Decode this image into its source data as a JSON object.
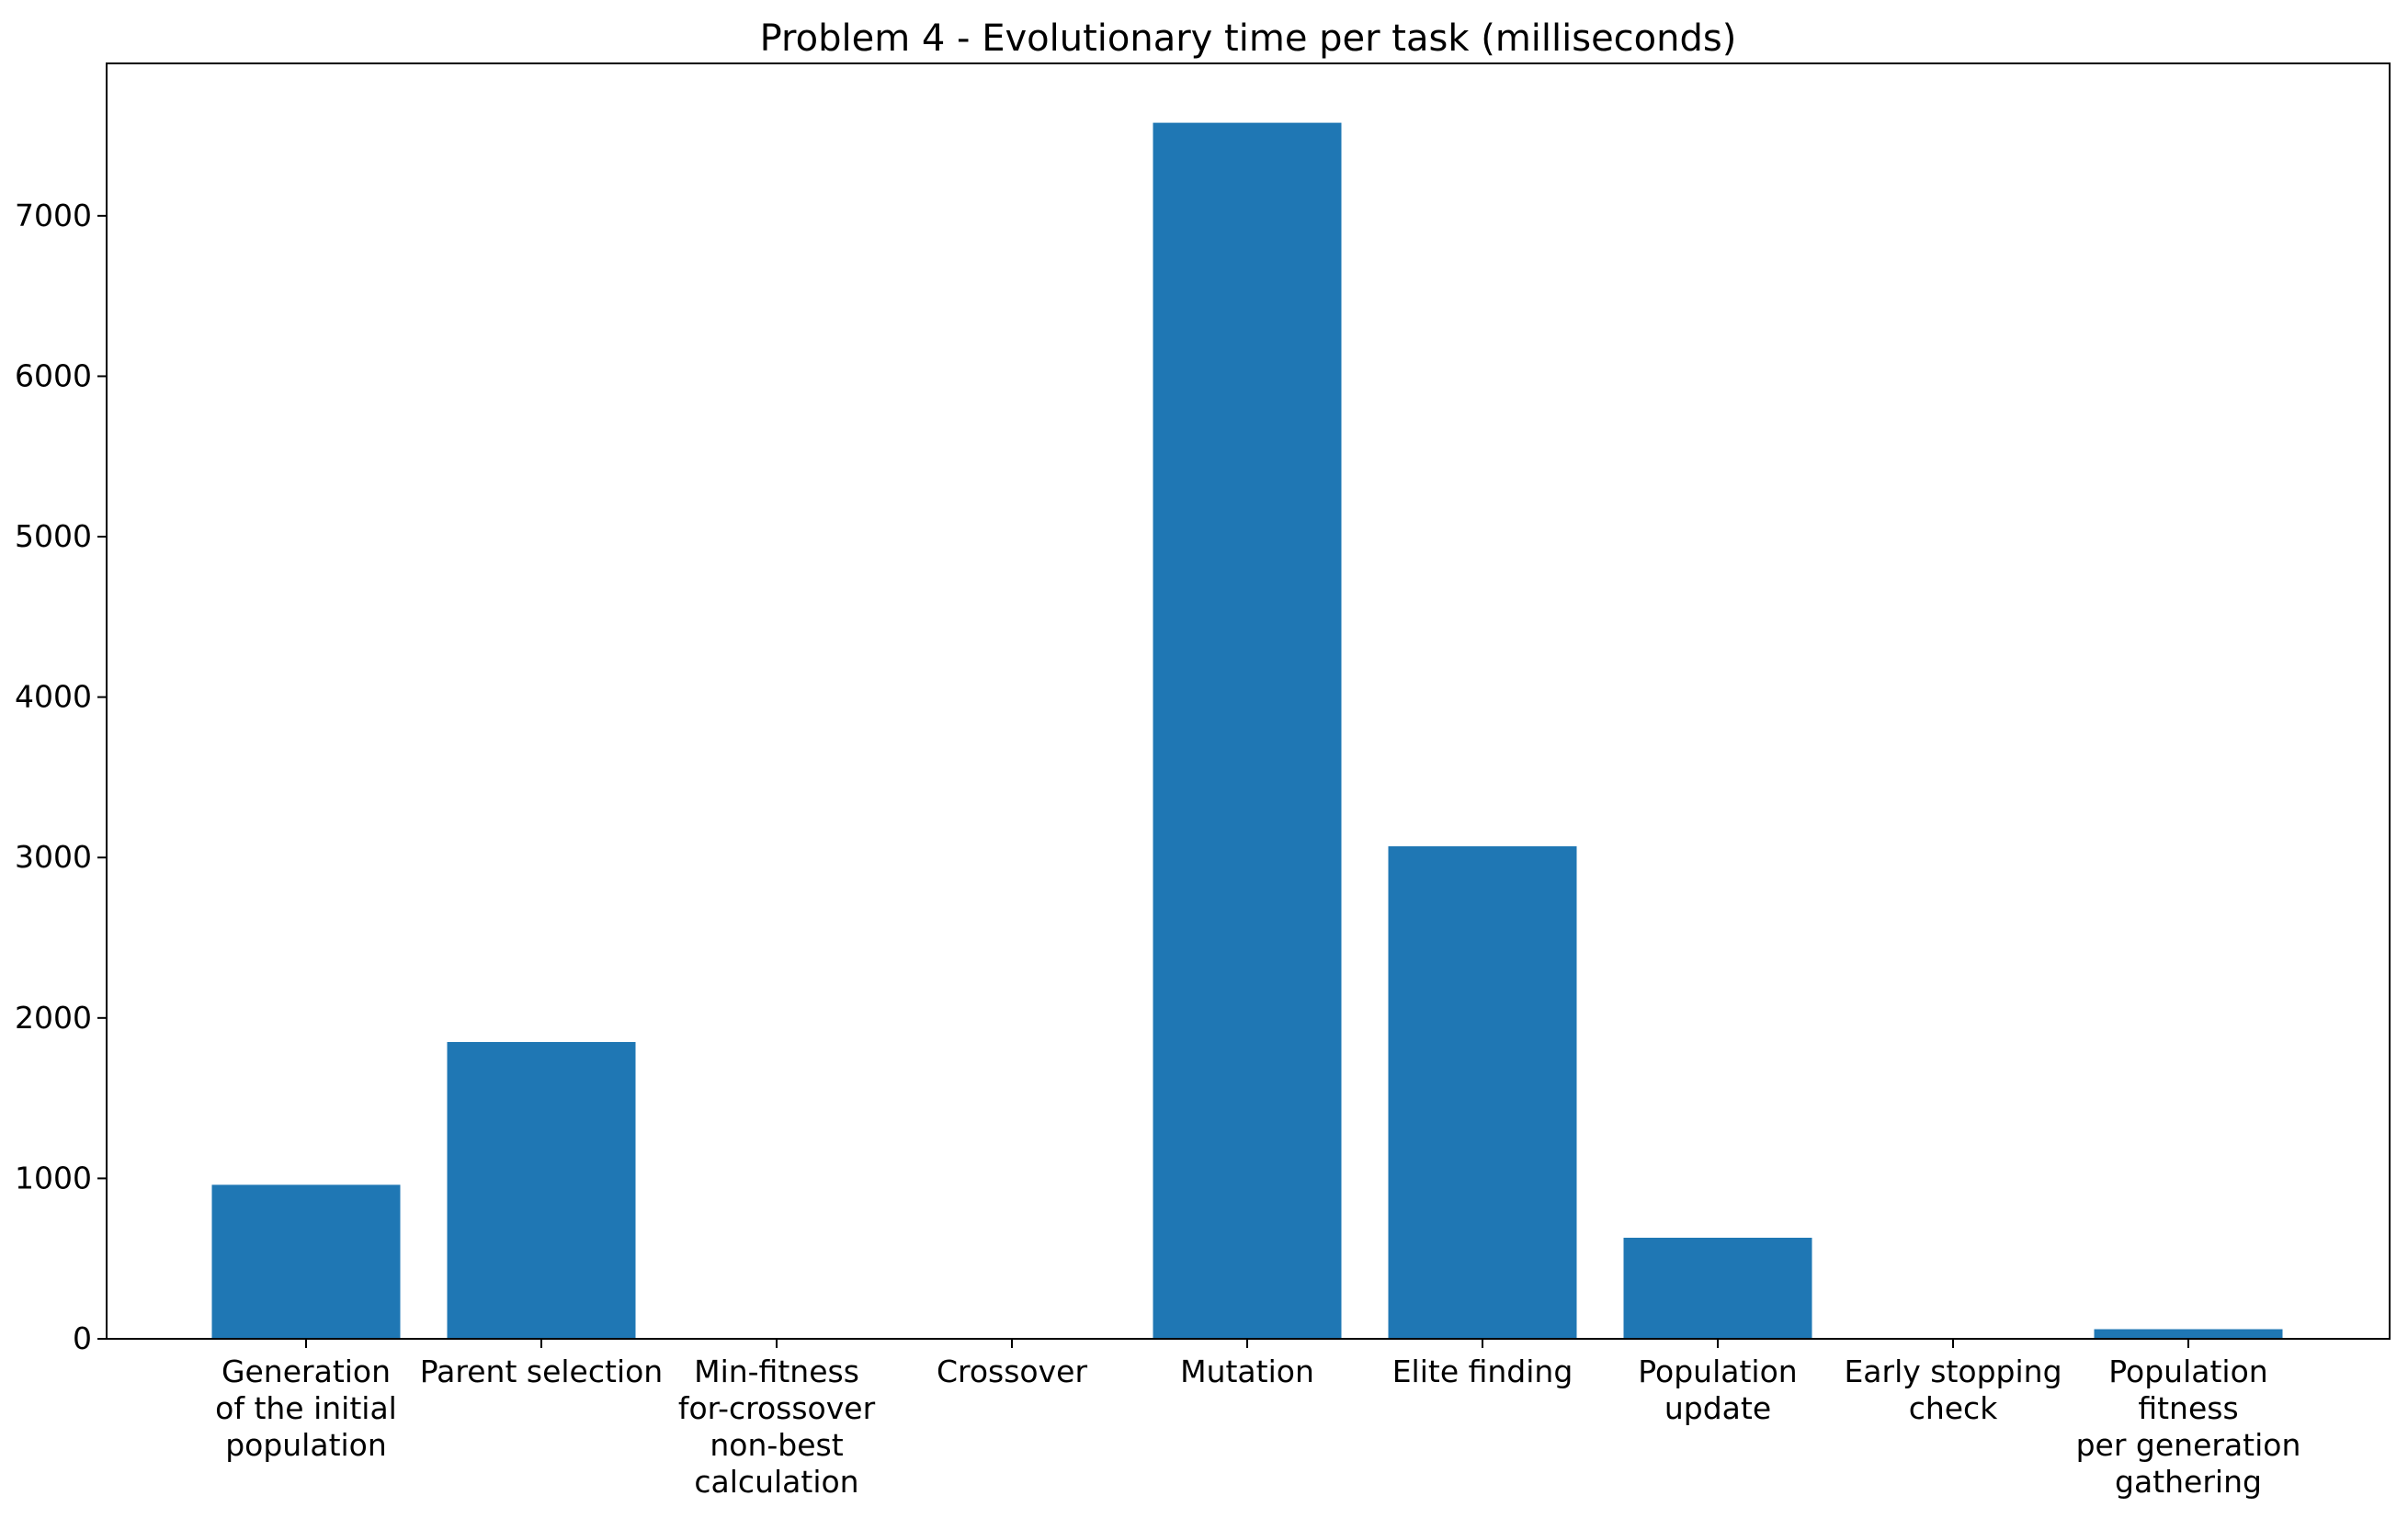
{
  "chart_data": {
    "type": "bar",
    "title": "Problem 4 - Evolutionary time per task (milliseconds)",
    "xlabel": "",
    "ylabel": "",
    "ylim": [
      0,
      7950
    ],
    "yticks": [
      0,
      1000,
      2000,
      3000,
      4000,
      5000,
      6000,
      7000
    ],
    "grid": false,
    "bar_color": "#1f77b4",
    "categories": [
      [
        "Generation",
        "of the initial",
        "population"
      ],
      [
        "Parent selection"
      ],
      [
        "Min-fitness",
        "for-crossover",
        "non-best",
        "calculation"
      ],
      [
        "Crossover"
      ],
      [
        "Mutation"
      ],
      [
        "Elite finding"
      ],
      [
        "Population",
        "update"
      ],
      [
        "Early stopping",
        "check"
      ],
      [
        "Population",
        "fitness",
        "per generation",
        "gathering"
      ]
    ],
    "values": [
      960,
      1850,
      0,
      0,
      7580,
      3070,
      630,
      0,
      60
    ]
  }
}
